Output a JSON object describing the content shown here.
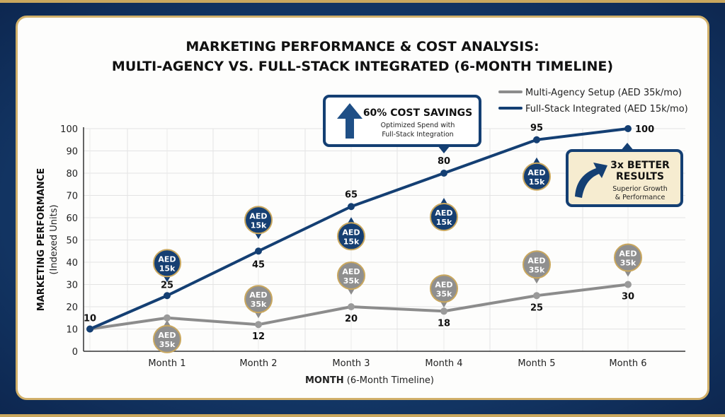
{
  "chart_data": {
    "type": "line",
    "title": [
      "MARKETING PERFORMANCE & COST ANALYSIS:",
      "MULTI-AGENCY VS. FULL-STACK INTEGRATED (6-MONTH TIMELINE)"
    ],
    "xlabel_bold": "MONTH",
    "xlabel_rest": " (6-Month Timeline)",
    "ylabel": "MARKETING PERFORMANCE",
    "ylabel_sub": "(Indexed Units)",
    "categories": [
      "",
      "Month 1",
      "Month 2",
      "Month 3",
      "Month 4",
      "Month 5",
      "Month 6"
    ],
    "ylim": [
      0,
      100
    ],
    "yticks": [
      "0",
      "10",
      "20",
      "30",
      "40",
      "50",
      "60",
      "70",
      "80",
      "90",
      "100"
    ],
    "grid": true,
    "legend_position": "top-right",
    "series": [
      {
        "name": "Multi-Agency Setup (AED 35k/mo)",
        "color": "#8c8c8c",
        "values": [
          10,
          15,
          12,
          20,
          18,
          25,
          30
        ],
        "labels": [
          "",
          "",
          "12",
          "20",
          "18",
          "25",
          "30"
        ],
        "pin_text": [
          "AED",
          "35k"
        ]
      },
      {
        "name": "Full-Stack Integrated (AED 15k/mo)",
        "color": "#143f73",
        "values": [
          10,
          25,
          45,
          65,
          80,
          95,
          100
        ],
        "labels": [
          "10",
          "25",
          "45",
          "65",
          "80",
          "95",
          "100"
        ],
        "pin_text": [
          "AED",
          "15k"
        ]
      }
    ],
    "annotations": [
      {
        "title": "60% COST SAVINGS",
        "lines": [
          "Optimized Spend with",
          "Full-Stack Integration"
        ],
        "icon": "arrow-up-icon"
      },
      {
        "title": [
          "3x BETTER",
          "RESULTS"
        ],
        "lines": [
          "Superior Growth",
          "& Performance"
        ],
        "icon": "curved-arrow-icon"
      }
    ],
    "colors": {
      "frame": "#14365f",
      "gold": "#c9a75e",
      "callout_bg": "#f6ecd0"
    }
  }
}
